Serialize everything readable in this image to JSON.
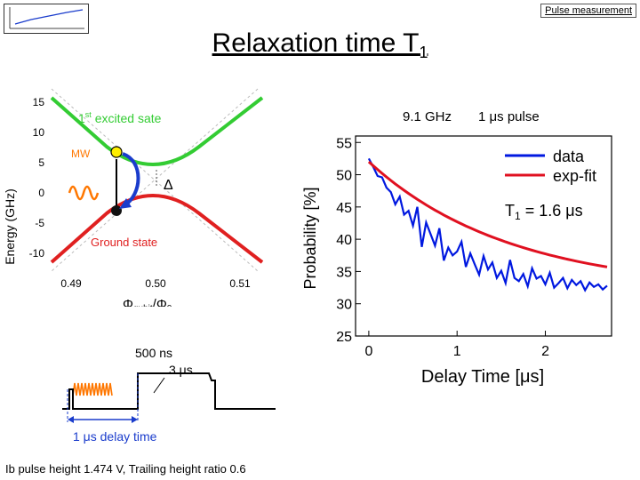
{
  "header": {
    "tab_label": "Pulse measurement",
    "title": "Relaxation time T",
    "title_sub": "1"
  },
  "energy_plot": {
    "ylabel": "Energy (GHz)",
    "yticks": [
      "15",
      "10",
      "5",
      "0",
      "-5",
      "-10"
    ],
    "xticks": [
      "0.49",
      "0.50",
      "0.51"
    ],
    "xlabel_main": "Φ",
    "xlabel_sub": "qubit",
    "xlabel_mid": "/Φ",
    "xlabel_sub2": "0",
    "excited_label": "1",
    "excited_sup": "st",
    "excited_rest": " excited sate",
    "ground_label": "Ground state",
    "mw_label": "MW",
    "delta_label": "Δ",
    "colors": {
      "excited": "#33cc33",
      "ground": "#e02020",
      "arrow": "#1a3ccc"
    }
  },
  "pulse_diagram": {
    "duration_label": "500 ns",
    "width_label": "3 μs",
    "delay_label": "1 μs delay time",
    "colors": {
      "mw": "#ff7700",
      "delay": "#1a3ccc"
    }
  },
  "chart_header": {
    "freq_label": "9.1 GHz",
    "pulse_label": "1 μs pulse"
  },
  "chart_data": {
    "type": "line",
    "ylabel": "Probability [%]",
    "xlabel_main": "Delay Time [",
    "xlabel_unit": "μs",
    "xlabel_close": "]",
    "ylim": [
      25,
      56
    ],
    "xlim": [
      -0.15,
      2.75
    ],
    "yticks": [
      25,
      30,
      35,
      40,
      45,
      50,
      55
    ],
    "xticks": [
      0,
      1,
      2
    ],
    "legend": [
      "data",
      "exp-fit"
    ],
    "legend_position": "top-right",
    "annotation_main": "T",
    "annotation_sub": "1",
    "annotation_rest": " = 1.6  μs",
    "fit": {
      "offset": 32.0,
      "amplitude": 20.0,
      "tau": 1.6
    },
    "series": [
      {
        "name": "data",
        "color": "#0018e0",
        "x": [
          0.0,
          0.05,
          0.1,
          0.15,
          0.2,
          0.25,
          0.3,
          0.35,
          0.4,
          0.45,
          0.5,
          0.55,
          0.6,
          0.65,
          0.7,
          0.75,
          0.8,
          0.85,
          0.9,
          0.95,
          1.0,
          1.05,
          1.1,
          1.15,
          1.2,
          1.25,
          1.3,
          1.35,
          1.4,
          1.45,
          1.5,
          1.55,
          1.6,
          1.65,
          1.7,
          1.75,
          1.8,
          1.85,
          1.9,
          1.95,
          2.0,
          2.05,
          2.1,
          2.15,
          2.2,
          2.25,
          2.3,
          2.35,
          2.4,
          2.45,
          2.5,
          2.55,
          2.6,
          2.65,
          2.7
        ],
        "y": [
          52.5,
          51.2,
          49.8,
          49.6,
          48.0,
          47.3,
          45.4,
          46.6,
          43.8,
          44.4,
          42.1,
          45.0,
          38.8,
          42.6,
          40.8,
          39.0,
          41.7,
          36.7,
          38.7,
          37.5,
          38.1,
          39.6,
          35.7,
          37.8,
          36.1,
          34.5,
          37.4,
          35.3,
          36.4,
          34.0,
          35.1,
          33.2,
          36.8,
          34.0,
          33.5,
          34.6,
          32.7,
          35.5,
          33.9,
          34.3,
          33.0,
          34.8,
          32.5,
          33.2,
          34.0,
          32.4,
          33.7,
          32.9,
          33.5,
          32.1,
          33.3,
          32.6,
          33.0,
          32.2,
          32.8
        ]
      },
      {
        "name": "exp-fit",
        "color": "#e01020"
      }
    ]
  },
  "footer": {
    "note": "Ib pulse height 1.474 V,  Trailing height ratio 0.6"
  }
}
